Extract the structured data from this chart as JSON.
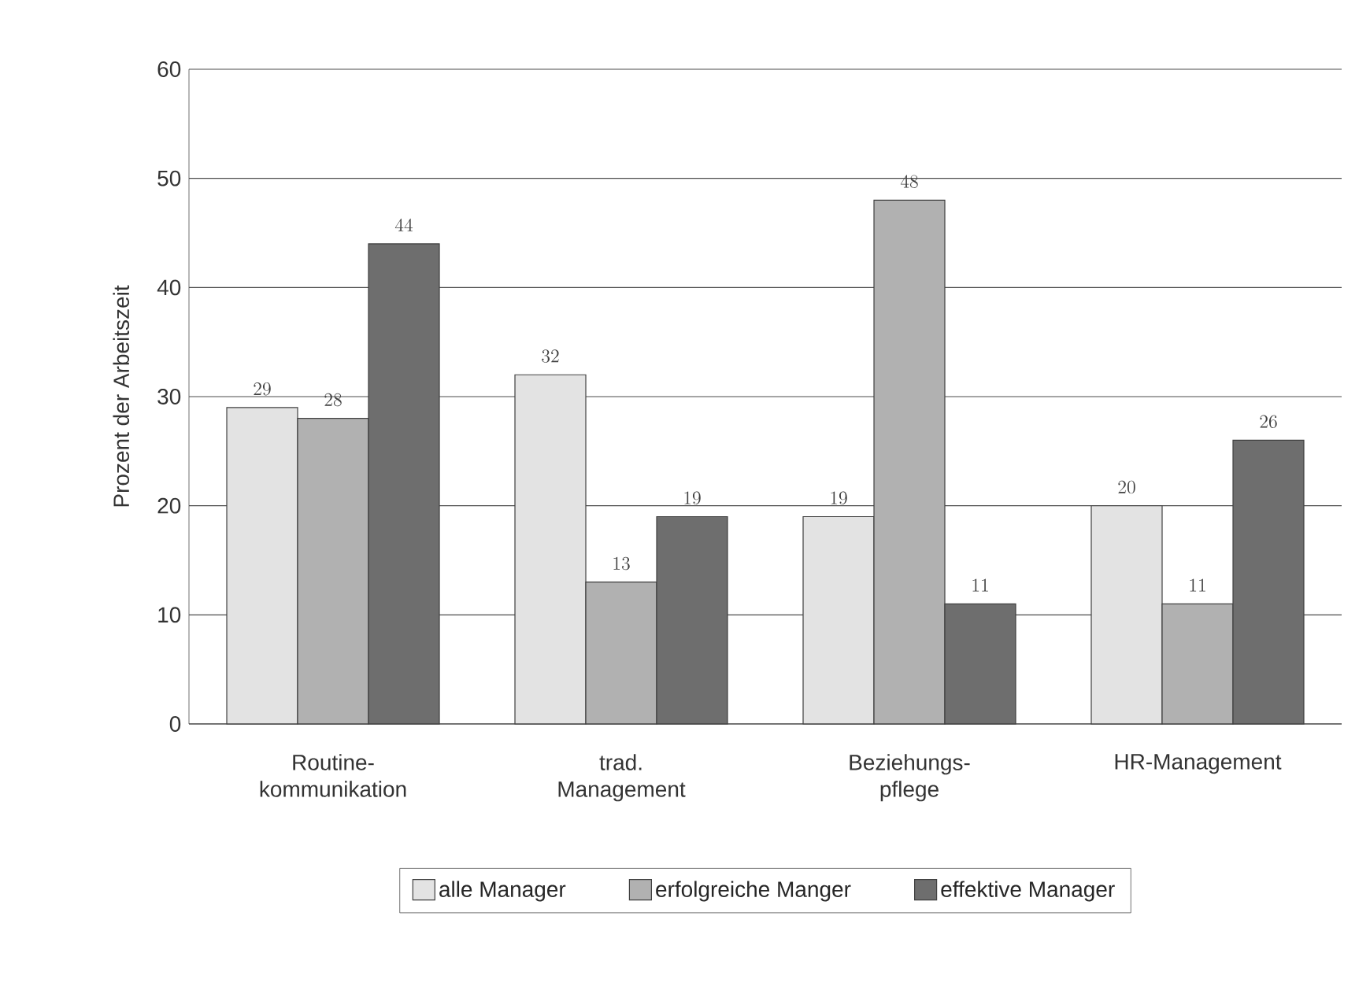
{
  "chart_data": {
    "type": "bar",
    "ylabel": "Prozent der Arbeitszeit",
    "categories": [
      "Routine-kommunikation",
      "trad. Management",
      "Beziehungs-pflege",
      "HR-Management"
    ],
    "series": [
      {
        "name": "alle Manager",
        "color": "#e3e3e3",
        "values": [
          29,
          32,
          19,
          20
        ]
      },
      {
        "name": "erfolgreiche Manger",
        "color": "#b1b1b1",
        "values": [
          28,
          13,
          48,
          11
        ]
      },
      {
        "name": "effektive Manager",
        "color": "#6e6e6e",
        "values": [
          44,
          19,
          11,
          26
        ]
      }
    ],
    "ylim": [
      0,
      60
    ],
    "yticks": [
      0,
      10,
      20,
      30,
      40,
      50,
      60
    ],
    "grid": "y",
    "legend": "bottom",
    "data_labels": true
  }
}
